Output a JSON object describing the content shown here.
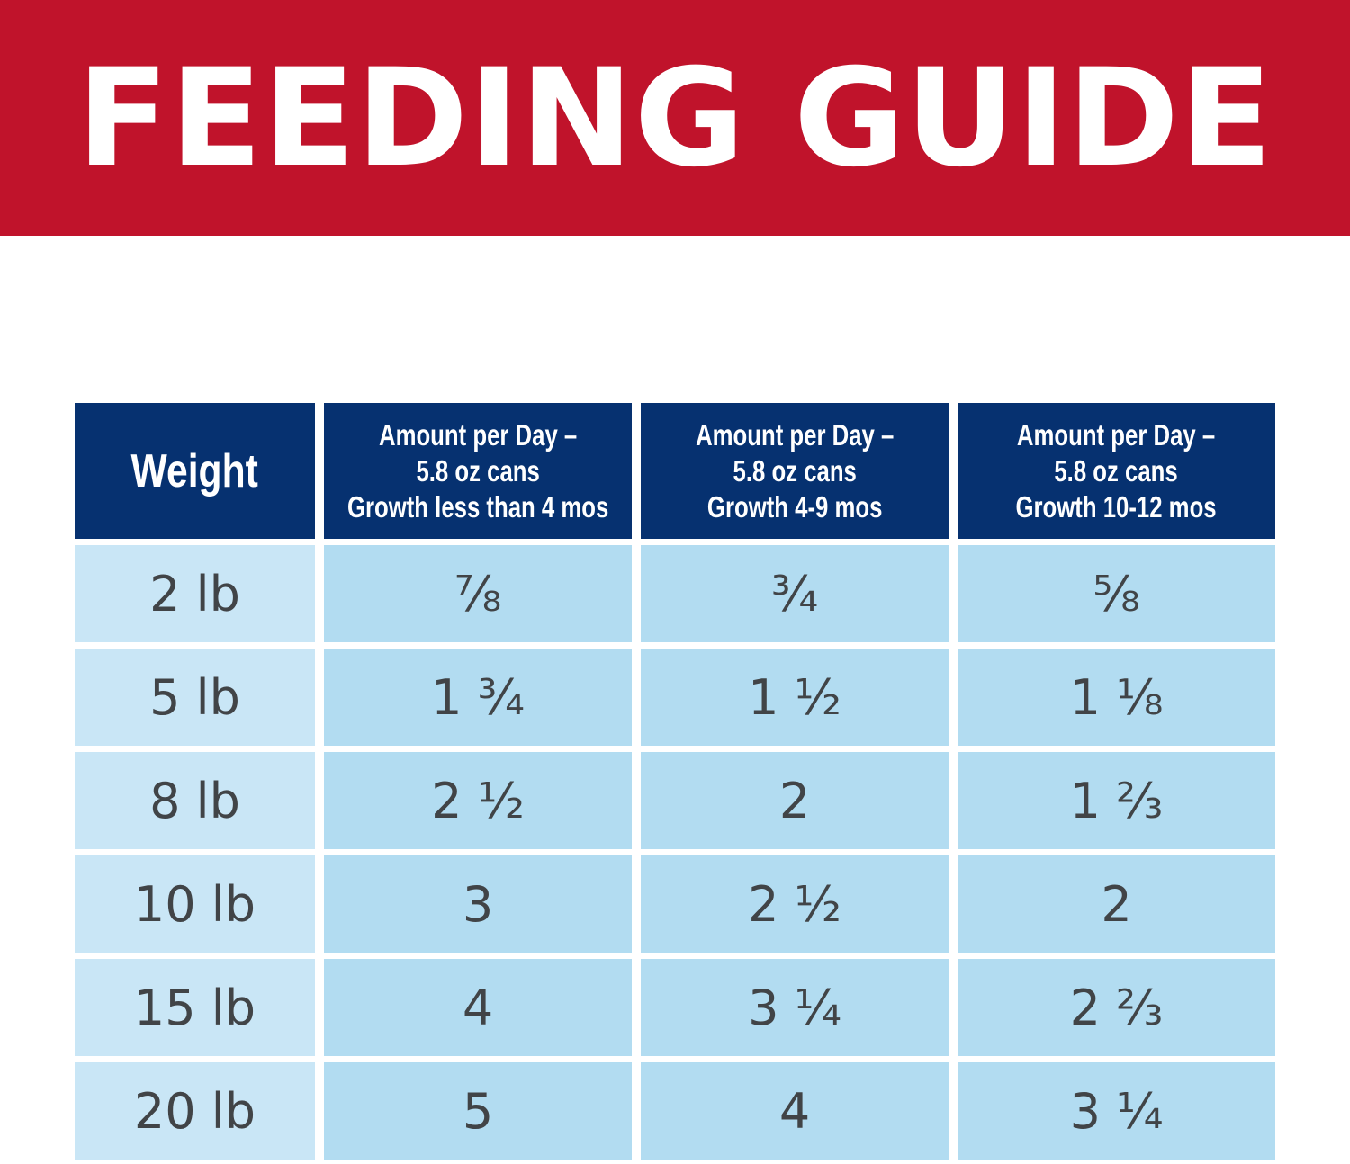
{
  "banner": {
    "title": "FEEDING GUIDE"
  },
  "table": {
    "headers": [
      {
        "lines": [
          "Weight"
        ]
      },
      {
        "lines": [
          "Amount per Day –",
          "5.8 oz cans",
          "Growth less than 4 mos"
        ]
      },
      {
        "lines": [
          "Amount per Day –",
          "5.8 oz cans",
          "Growth 4-9 mos"
        ]
      },
      {
        "lines": [
          "Amount per Day –",
          "5.8 oz cans",
          "Growth 10-12 mos"
        ]
      }
    ],
    "rows": [
      {
        "weight": "2 lb",
        "cells": [
          "⅞",
          "¾",
          "⅝"
        ]
      },
      {
        "weight": "5 lb",
        "cells": [
          "1 ¾",
          "1 ½",
          "1 ⅛"
        ]
      },
      {
        "weight": "8 lb",
        "cells": [
          "2 ½",
          "2",
          "1 ⅔"
        ]
      },
      {
        "weight": "10 lb",
        "cells": [
          "3",
          "2 ½",
          "2"
        ]
      },
      {
        "weight": "15 lb",
        "cells": [
          "4",
          "3 ¼",
          "2 ⅔"
        ]
      },
      {
        "weight": "20 lb",
        "cells": [
          "5",
          "4",
          "3 ¼"
        ]
      }
    ]
  },
  "colors": {
    "banner_red": "#c0132b",
    "header_navy": "#063170",
    "weight_cell": "#c9e6f6",
    "value_cell": "#b2dcf1",
    "value_text": "#414447"
  }
}
